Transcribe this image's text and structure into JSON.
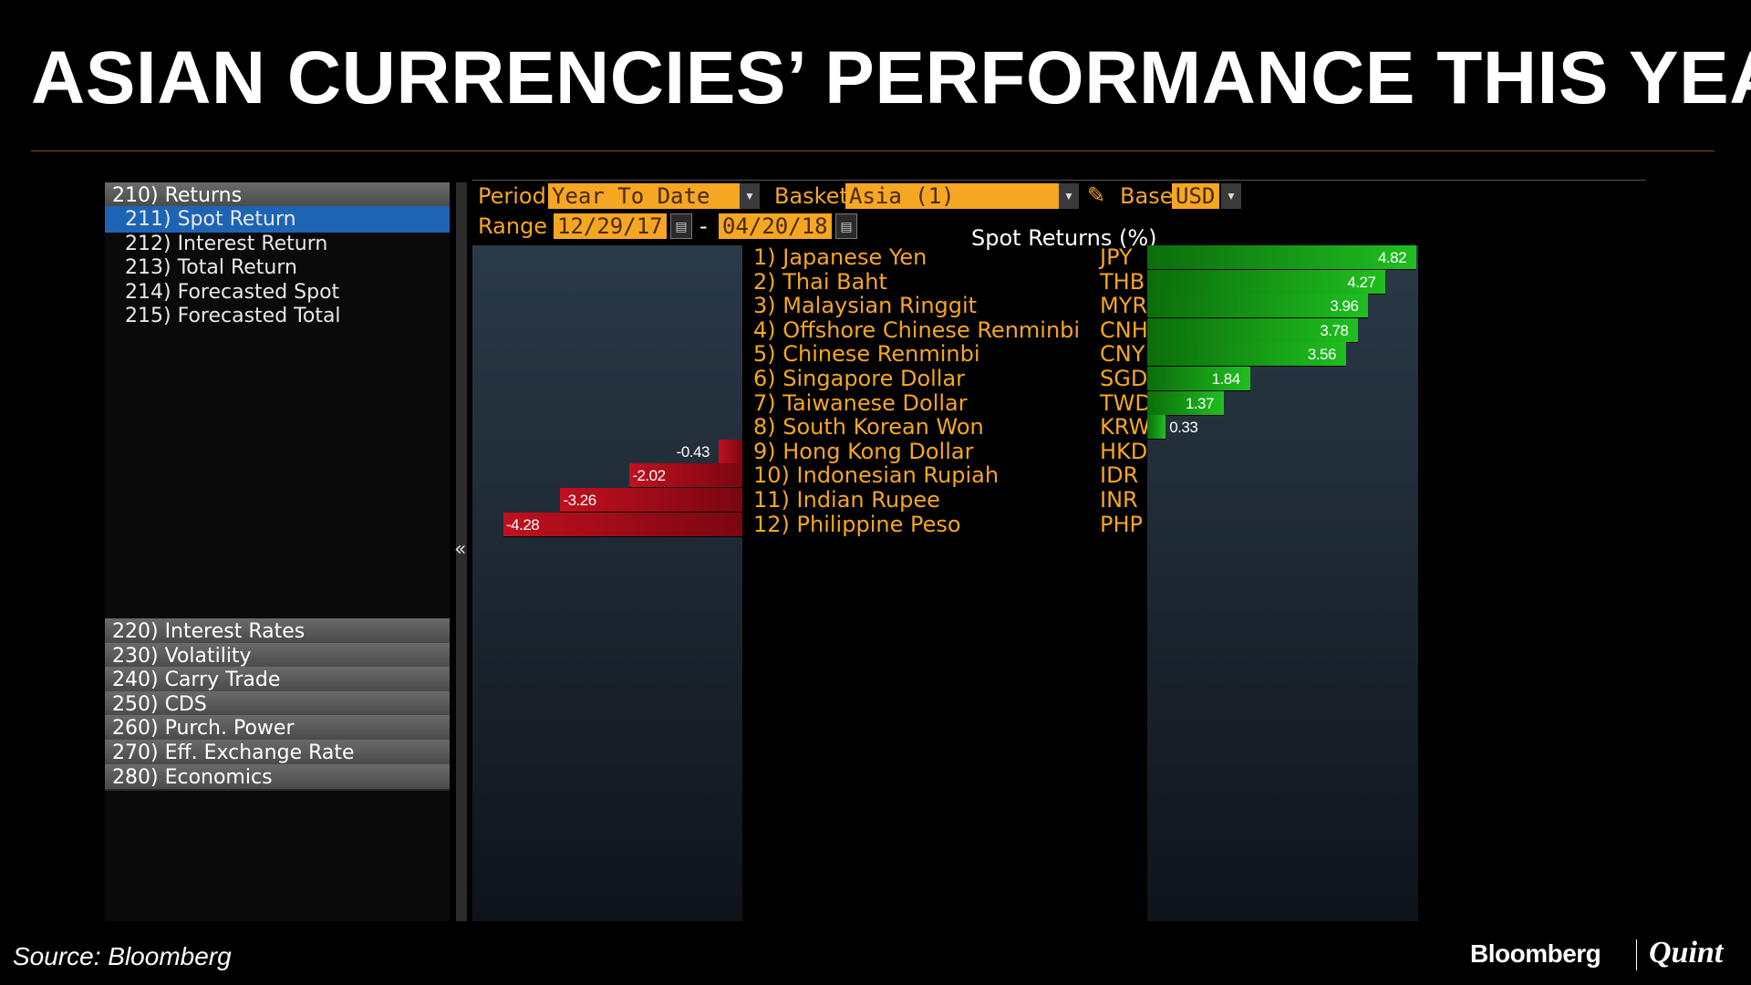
{
  "slide": {
    "title": "ASIAN CURRENCIES’ PERFORMANCE THIS YEAR",
    "source": "Source: Bloomberg",
    "logo_left": "Bloomberg",
    "logo_right": "Quint"
  },
  "sidebar": {
    "returns_group": "210) Returns",
    "sub_items": [
      {
        "label": "211) Spot Return",
        "active": true
      },
      {
        "label": "212) Interest Return",
        "active": false
      },
      {
        "label": "213) Total Return",
        "active": false
      },
      {
        "label": "214) Forecasted Spot",
        "active": false
      },
      {
        "label": "215) Forecasted Total",
        "active": false
      }
    ],
    "groups": [
      "220) Interest Rates",
      "230) Volatility",
      "240) Carry Trade",
      "250) CDS",
      "260) Purch. Power",
      "270) Eff. Exchange Rate",
      "280) Economics"
    ],
    "collapse_glyph": "«"
  },
  "controls": {
    "period_label": "Period",
    "period_value": "Year To Date",
    "basket_label": "Basket",
    "basket_value": "Asia (1)",
    "base_label": "Base",
    "base_value": "USD",
    "range_label": "Range",
    "range_start": "12/29/17",
    "range_dash": "-",
    "range_end": "04/20/18"
  },
  "chart_data": {
    "type": "bar",
    "title": "Spot Returns (%)",
    "categories": [
      "Japanese Yen",
      "Thai Baht",
      "Malaysian Ringgit",
      "Offshore Chinese Renminbi",
      "Chinese Renminbi",
      "Singapore Dollar",
      "Taiwanese Dollar",
      "South Korean Won",
      "Hong Kong Dollar",
      "Indonesian Rupiah",
      "Indian Rupee",
      "Philippine Peso"
    ],
    "ranks": [
      "1)",
      "2)",
      "3)",
      "4)",
      "5)",
      "6)",
      "7)",
      "8)",
      "9)",
      "10)",
      "11)",
      "12)"
    ],
    "codes": [
      "JPY",
      "THB",
      "MYR",
      "CNH",
      "CNY",
      "SGD",
      "TWD",
      "KRW",
      "HKD",
      "IDR",
      "INR",
      "PHP"
    ],
    "values": [
      4.82,
      4.27,
      3.96,
      3.78,
      3.56,
      1.84,
      1.37,
      0.33,
      -0.43,
      -2.02,
      -3.26,
      -4.28
    ],
    "value_labels": [
      "4.82",
      "4.27",
      "3.96",
      "3.78",
      "3.56",
      "1.84",
      "1.37",
      "0.33",
      "-0.43",
      "-2.02",
      "-3.26",
      "-4.28"
    ],
    "positive_color": "#1fbf1f",
    "negative_color": "#b01020"
  }
}
